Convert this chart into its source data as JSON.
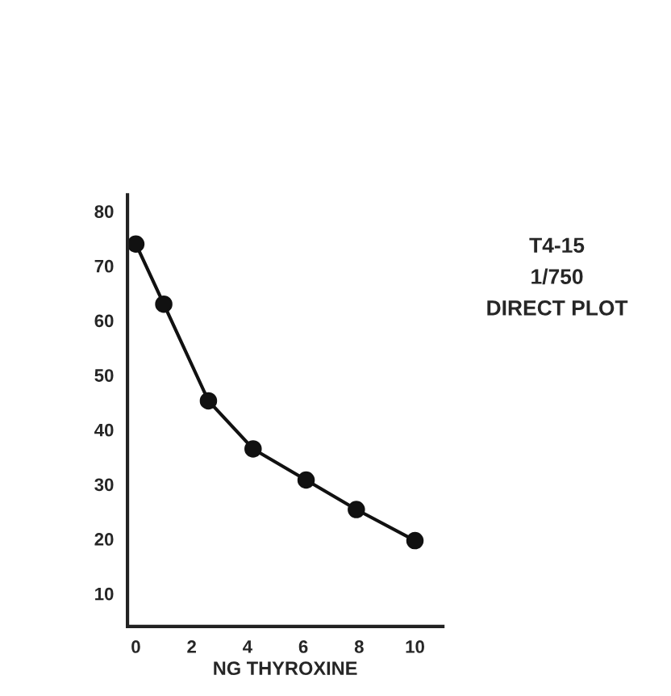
{
  "chart_data": {
    "type": "line",
    "xlabel": "NG THYROXINE",
    "annotations": [
      "T4-15",
      "1/750",
      "DIRECT PLOT"
    ],
    "x": [
      0,
      1,
      2.6,
      4.2,
      6.1,
      7.9,
      10
    ],
    "series": [
      {
        "color": "#111111",
        "values": [
          74,
          63,
          45.3,
          36.5,
          30.8,
          25.4,
          19.7
        ]
      }
    ],
    "xlim": [
      -0.3,
      11
    ],
    "ylim": [
      4,
      83
    ],
    "xticks": [
      0,
      2,
      4,
      6,
      8,
      10
    ],
    "yticks": [
      10,
      20,
      30,
      40,
      50,
      60,
      70,
      80
    ],
    "marker": "circle",
    "line_style": "solid",
    "grid": false,
    "legend": false
  }
}
